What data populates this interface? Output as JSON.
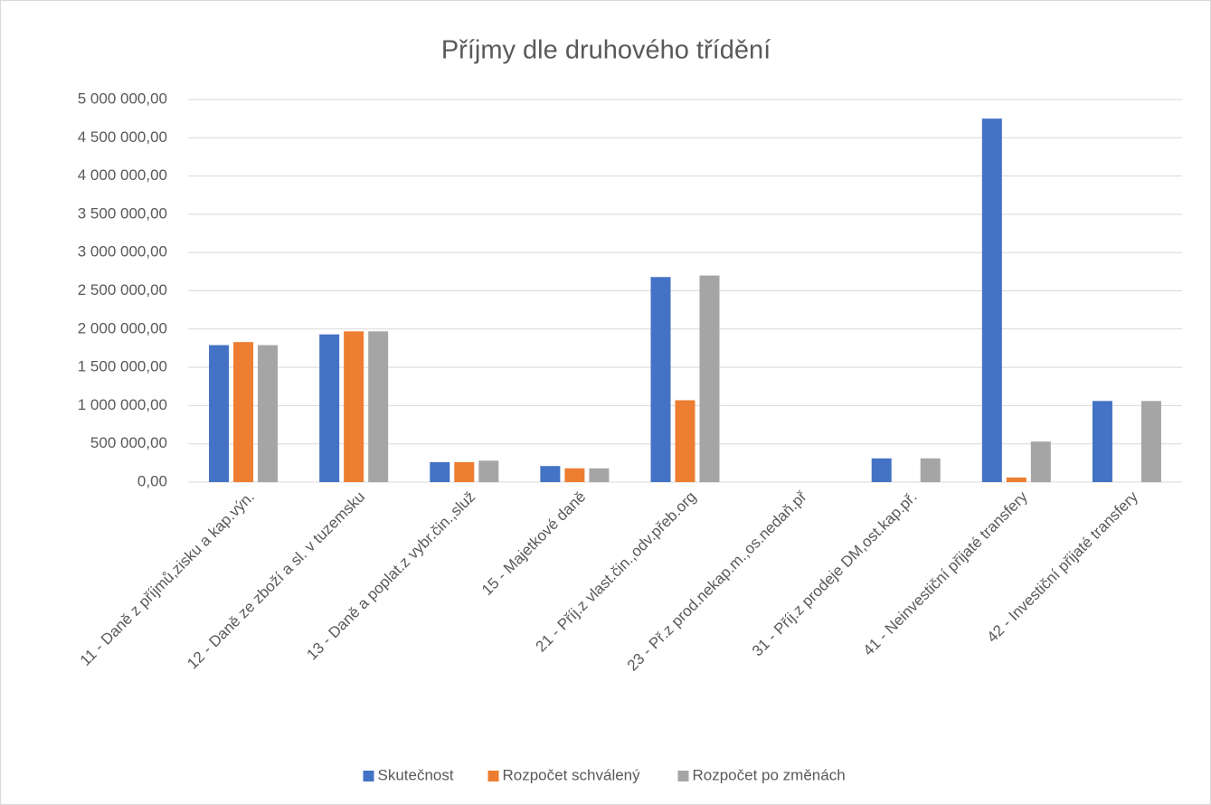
{
  "chart_data": {
    "type": "bar",
    "title": "Příjmy dle druhového třídění",
    "categories": [
      "11 - Daně z příjmů,zisku a kap.výn.",
      "12 - Daně ze zboží a sl. v tuzemsku",
      "13 - Daně a poplat.z vybr.čin.,služ",
      "15 - Majetkové daně",
      "21 - Příj.z vlast.čin.,odv.přeb.org",
      "23 - Př.z prod.nekap.m.,os.nedaň.př",
      "31 - Příj.z prodeje DM,ost.kap.př.",
      "41 - Neinvestiční přijaté transfery",
      "42 - Investiční přijaté transfery"
    ],
    "series": [
      {
        "name": "Skutečnost",
        "color": "#4472c4",
        "values": [
          1790000,
          1930000,
          260000,
          210000,
          2680000,
          0,
          310000,
          4750000,
          1060000
        ]
      },
      {
        "name": "Rozpočet schválený",
        "color": "#ed7d31",
        "values": [
          1830000,
          1970000,
          260000,
          180000,
          1070000,
          0,
          0,
          60000,
          0
        ]
      },
      {
        "name": "Rozpočet po změnách",
        "color": "#a5a5a5",
        "values": [
          1790000,
          1970000,
          280000,
          180000,
          2700000,
          0,
          310000,
          530000,
          1060000
        ]
      }
    ],
    "ylim": [
      0,
      5000000
    ],
    "yticks": [
      {
        "value": 0,
        "label": "0,00"
      },
      {
        "value": 500000,
        "label": "500 000,00"
      },
      {
        "value": 1000000,
        "label": "1 000 000,00"
      },
      {
        "value": 1500000,
        "label": "1 500 000,00"
      },
      {
        "value": 2000000,
        "label": "2 000 000,00"
      },
      {
        "value": 2500000,
        "label": "2 500 000,00"
      },
      {
        "value": 3000000,
        "label": "3 000 000,00"
      },
      {
        "value": 3500000,
        "label": "3 500 000,00"
      },
      {
        "value": 4000000,
        "label": "4 000 000,00"
      },
      {
        "value": 4500000,
        "label": "4 500 000,00"
      },
      {
        "value": 5000000,
        "label": "5 000 000,00"
      }
    ],
    "grid": true,
    "legend": "bottom"
  }
}
